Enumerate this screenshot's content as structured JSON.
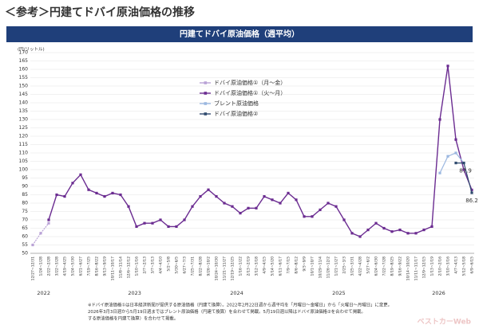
{
  "chart_data": {
    "type": "line",
    "page_title": "＜参考＞円建てドバイ原油価格の推移",
    "title": "円建てドバイ原油価格（週平均）",
    "y_label": "(円/リットル)",
    "ylim": [
      50,
      170
    ],
    "yticks": [
      50,
      55,
      60,
      65,
      70,
      75,
      80,
      85,
      90,
      95,
      100,
      105,
      110,
      115,
      120,
      125,
      130,
      135,
      140,
      145,
      150,
      155,
      160,
      165,
      170
    ],
    "grid": true,
    "categories": [
      "12/27~12/31",
      "1/24~1/28",
      "2/22~2/28",
      "3/22~3/28",
      "4/19~4/25",
      "5/24~5/30",
      "6/21~6/27",
      "7/19~7/25",
      "8/16~8/22",
      "9/13~9/19",
      "10/11~10/17",
      "11/8~11/14",
      "12/6~12/12",
      "1/10~1/16",
      "2/7~2/13",
      "3/7~3/13",
      "4/4~4/10",
      "5/2~5/8",
      "5/30~6/5",
      "6/27~7/3",
      "7/25~7/31",
      "8/22~8/28",
      "9/26~10/2",
      "10/24~10/30",
      "11/21~11/27",
      "12/19~12/25",
      "1/16~1/22",
      "2/13~2/19",
      "3/12~3/18",
      "4/9~4/15",
      "5/14~5/20",
      "6/11~6/17",
      "7/9~7/15",
      "8/6~8/12",
      "9/3~9/9",
      "10/1~10/7",
      "10/29~11/4",
      "11/26~12/2",
      "1/21~1/27",
      "2/25~3/3",
      "3/25~3/31",
      "4/22~4/28",
      "5/27~6/2",
      "6/24~6/30",
      "7/22~7/28",
      "8/19~8/25",
      "9/16~9/22",
      "10/14~10/20",
      "11/11~11/17",
      "12/9~12/15",
      "1/13~1/19",
      "2/10~2/16",
      "3/10~3/16",
      "4/7~4/13",
      "5/12~5/18",
      "6/9~6/15"
    ],
    "years": [
      "2022",
      "2023",
      "2024",
      "2025",
      "2026"
    ],
    "legend_position": "upper-left",
    "series": [
      {
        "name": "ドバイ原油価格①（月～金）",
        "color": "#b9a2d6",
        "values": [
          55,
          62,
          68,
          null,
          null,
          null,
          null,
          null,
          null,
          null,
          null,
          null,
          null,
          null,
          null,
          null,
          null,
          null,
          null,
          null,
          null,
          null,
          null,
          null,
          null,
          null,
          null,
          null,
          null,
          null,
          null,
          null,
          null,
          null,
          null,
          null,
          null,
          null,
          null,
          null,
          null,
          null,
          null,
          null,
          null,
          null,
          null,
          null,
          null,
          null,
          null,
          null,
          null,
          null,
          null,
          null
        ]
      },
      {
        "name": "ドバイ原油価格①（火～月）",
        "color": "#6b2c91",
        "values": [
          null,
          null,
          70,
          85,
          84,
          92,
          97,
          88,
          86,
          84,
          86,
          85,
          78,
          66,
          68,
          68,
          70,
          66,
          66,
          70,
          78,
          84,
          88,
          84,
          80,
          78,
          74,
          77,
          77,
          84,
          82,
          80,
          86,
          82,
          72,
          72,
          76,
          80,
          78,
          70,
          62,
          60,
          64,
          68,
          65,
          63,
          64,
          62,
          62,
          64,
          66,
          130,
          162,
          118,
          100,
          87.9
        ]
      },
      {
        "name": "ブレント原油価格",
        "color": "#9bb7e0",
        "values": [
          null,
          null,
          null,
          null,
          null,
          null,
          null,
          null,
          null,
          null,
          null,
          null,
          null,
          null,
          null,
          null,
          null,
          null,
          null,
          null,
          null,
          null,
          null,
          null,
          null,
          null,
          null,
          null,
          null,
          null,
          null,
          null,
          null,
          null,
          null,
          null,
          null,
          null,
          null,
          null,
          null,
          null,
          null,
          null,
          null,
          null,
          null,
          null,
          null,
          null,
          null,
          98,
          108,
          110,
          104,
          null
        ]
      },
      {
        "name": "ドバイ原油価格②",
        "color": "#2f4a6e",
        "values": [
          null,
          null,
          null,
          null,
          null,
          null,
          null,
          null,
          null,
          null,
          null,
          null,
          null,
          null,
          null,
          null,
          null,
          null,
          null,
          null,
          null,
          null,
          null,
          null,
          null,
          null,
          null,
          null,
          null,
          null,
          null,
          null,
          null,
          null,
          null,
          null,
          null,
          null,
          null,
          null,
          null,
          null,
          null,
          null,
          null,
          null,
          null,
          null,
          null,
          null,
          null,
          null,
          null,
          104,
          104,
          86.2
        ]
      }
    ],
    "annotations": [
      "87.9",
      "86.2"
    ],
    "footnotes": [
      "※ドバイ原油価格①は日本経済新聞が提供する原油価格（円建て換算）。2022年2月22日週から週平均を「月曜日～金曜日」から「火曜日～月曜日」に変更。",
      "2026年3月3日週から5月19日週まではブレント原油価格（円建て換算）を合わせて掲載。5月19日週以降はドバイ原油価格②を合わせて掲載。",
      "する原油価格を円建て換算）を合わせて掲載。"
    ],
    "watermark": "ベストカーWeb"
  }
}
